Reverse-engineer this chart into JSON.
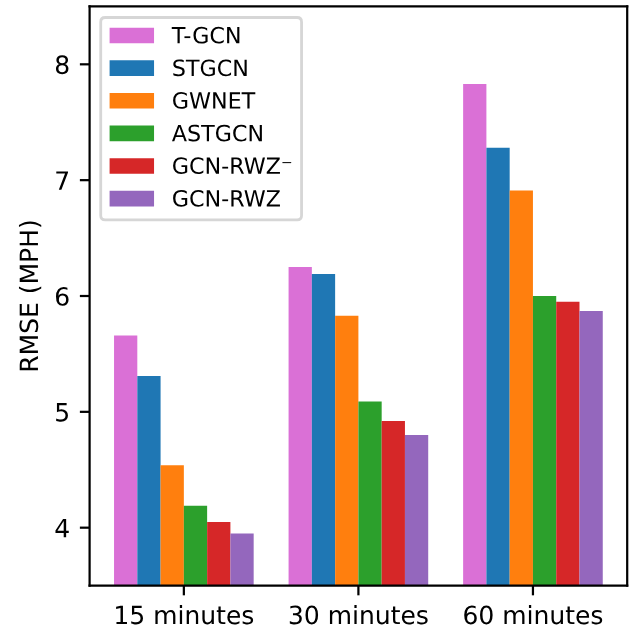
{
  "chart_data": {
    "type": "bar",
    "ylabel": "RMSE (MPH)",
    "categories": [
      "15 minutes",
      "30 minutes",
      "60 minutes"
    ],
    "series": [
      {
        "name": "T-GCN",
        "color": "#da70d6",
        "values": [
          5.66,
          6.25,
          7.83
        ]
      },
      {
        "name": "STGCN",
        "color": "#1f77b4",
        "values": [
          5.31,
          6.19,
          7.28
        ]
      },
      {
        "name": "GWNET",
        "color": "#ff7f0e",
        "values": [
          4.54,
          5.83,
          6.91
        ]
      },
      {
        "name": "ASTGCN",
        "color": "#2ca02c",
        "values": [
          4.19,
          5.09,
          6.0
        ]
      },
      {
        "name": "GCN-RWZ⁻",
        "color": "#d62728",
        "values": [
          4.05,
          4.92,
          5.95
        ]
      },
      {
        "name": "GCN-RWZ",
        "color": "#9467bd",
        "values": [
          3.95,
          4.8,
          5.87
        ]
      }
    ],
    "ylim": [
      3.5,
      8.5
    ],
    "yticks": [
      4,
      5,
      6,
      7,
      8
    ],
    "grid": false,
    "legend": "top left"
  }
}
